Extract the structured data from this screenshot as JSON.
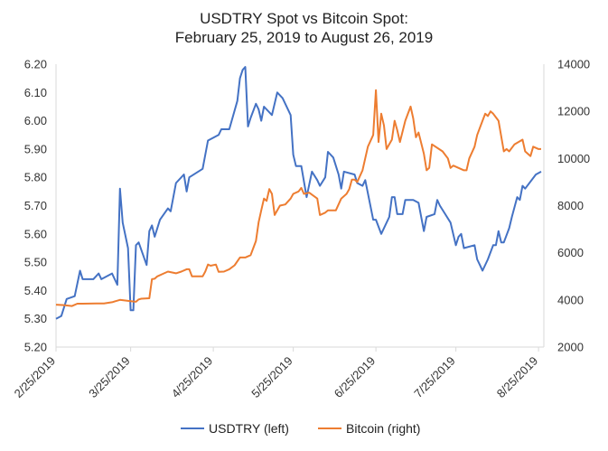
{
  "chart_data": {
    "type": "line",
    "title_line1": "USDTRY Spot vs Bitcoin Spot:",
    "title_line2": "February 25, 2019 to August 26, 2019",
    "x_tick_labels": [
      "2/25/2019",
      "3/25/2019",
      "4/25/2019",
      "5/25/2019",
      "6/25/2019",
      "7/25/2019",
      "8/25/2019"
    ],
    "left_axis": {
      "ticks": [
        "5.20",
        "5.30",
        "5.40",
        "5.50",
        "5.60",
        "5.70",
        "5.80",
        "5.90",
        "6.00",
        "6.10",
        "6.20"
      ],
      "ylim": [
        5.2,
        6.2
      ]
    },
    "right_axis": {
      "ticks": [
        "2000",
        "4000",
        "6000",
        "8000",
        "10000",
        "12000",
        "14000"
      ],
      "ylim": [
        2000,
        14000
      ]
    },
    "legend_position": "bottom",
    "colors": {
      "usdtry": "#4472C4",
      "bitcoin": "#ED7D31",
      "axis": "#D9D9D9"
    },
    "series": [
      {
        "name": "USDTRY (left)",
        "axis": "left",
        "points": [
          [
            "2019-02-25",
            5.3
          ],
          [
            "2019-02-27",
            5.31
          ],
          [
            "2019-03-01",
            5.37
          ],
          [
            "2019-03-04",
            5.38
          ],
          [
            "2019-03-06",
            5.47
          ],
          [
            "2019-03-07",
            5.44
          ],
          [
            "2019-03-11",
            5.44
          ],
          [
            "2019-03-13",
            5.46
          ],
          [
            "2019-03-14",
            5.44
          ],
          [
            "2019-03-18",
            5.46
          ],
          [
            "2019-03-20",
            5.42
          ],
          [
            "2019-03-21",
            5.76
          ],
          [
            "2019-03-22",
            5.64
          ],
          [
            "2019-03-24",
            5.55
          ],
          [
            "2019-03-25",
            5.33
          ],
          [
            "2019-03-26",
            5.33
          ],
          [
            "2019-03-27",
            5.56
          ],
          [
            "2019-03-28",
            5.57
          ],
          [
            "2019-03-31",
            5.49
          ],
          [
            "2019-04-01",
            5.61
          ],
          [
            "2019-04-02",
            5.63
          ],
          [
            "2019-04-03",
            5.59
          ],
          [
            "2019-04-05",
            5.65
          ],
          [
            "2019-04-08",
            5.69
          ],
          [
            "2019-04-09",
            5.68
          ],
          [
            "2019-04-11",
            5.78
          ],
          [
            "2019-04-14",
            5.81
          ],
          [
            "2019-04-15",
            5.75
          ],
          [
            "2019-04-16",
            5.8
          ],
          [
            "2019-04-21",
            5.83
          ],
          [
            "2019-04-23",
            5.93
          ],
          [
            "2019-04-25",
            5.94
          ],
          [
            "2019-04-27",
            5.95
          ],
          [
            "2019-04-28",
            5.97
          ],
          [
            "2019-05-01",
            5.97
          ],
          [
            "2019-05-04",
            6.07
          ],
          [
            "2019-05-05",
            6.15
          ],
          [
            "2019-05-06",
            6.18
          ],
          [
            "2019-05-07",
            6.19
          ],
          [
            "2019-05-08",
            5.98
          ],
          [
            "2019-05-09",
            6.01
          ],
          [
            "2019-05-11",
            6.06
          ],
          [
            "2019-05-12",
            6.04
          ],
          [
            "2019-05-13",
            6.0
          ],
          [
            "2019-05-14",
            6.05
          ],
          [
            "2019-05-17",
            6.02
          ],
          [
            "2019-05-19",
            6.1
          ],
          [
            "2019-05-21",
            6.08
          ],
          [
            "2019-05-24",
            6.02
          ],
          [
            "2019-05-25",
            5.88
          ],
          [
            "2019-05-26",
            5.84
          ],
          [
            "2019-05-28",
            5.84
          ],
          [
            "2019-05-30",
            5.73
          ],
          [
            "2019-06-01",
            5.82
          ],
          [
            "2019-06-03",
            5.79
          ],
          [
            "2019-06-04",
            5.77
          ],
          [
            "2019-06-06",
            5.8
          ],
          [
            "2019-06-07",
            5.89
          ],
          [
            "2019-06-09",
            5.87
          ],
          [
            "2019-06-11",
            5.81
          ],
          [
            "2019-06-12",
            5.76
          ],
          [
            "2019-06-13",
            5.82
          ],
          [
            "2019-06-17",
            5.81
          ],
          [
            "2019-06-18",
            5.78
          ],
          [
            "2019-06-20",
            5.77
          ],
          [
            "2019-06-21",
            5.79
          ],
          [
            "2019-06-24",
            5.65
          ],
          [
            "2019-06-25",
            5.65
          ],
          [
            "2019-06-27",
            5.6
          ],
          [
            "2019-06-30",
            5.66
          ],
          [
            "2019-07-01",
            5.73
          ],
          [
            "2019-07-02",
            5.73
          ],
          [
            "2019-07-03",
            5.67
          ],
          [
            "2019-07-05",
            5.67
          ],
          [
            "2019-07-06",
            5.72
          ],
          [
            "2019-07-09",
            5.72
          ],
          [
            "2019-07-11",
            5.71
          ],
          [
            "2019-07-13",
            5.61
          ],
          [
            "2019-07-14",
            5.66
          ],
          [
            "2019-07-17",
            5.67
          ],
          [
            "2019-07-18",
            5.72
          ],
          [
            "2019-07-19",
            5.7
          ],
          [
            "2019-07-21",
            5.67
          ],
          [
            "2019-07-23",
            5.64
          ],
          [
            "2019-07-25",
            5.56
          ],
          [
            "2019-07-26",
            5.59
          ],
          [
            "2019-07-27",
            5.6
          ],
          [
            "2019-07-28",
            5.55
          ],
          [
            "2019-08-01",
            5.56
          ],
          [
            "2019-08-02",
            5.51
          ],
          [
            "2019-08-03",
            5.49
          ],
          [
            "2019-08-04",
            5.47
          ],
          [
            "2019-08-06",
            5.51
          ],
          [
            "2019-08-08",
            5.56
          ],
          [
            "2019-08-09",
            5.56
          ],
          [
            "2019-08-10",
            5.61
          ],
          [
            "2019-08-11",
            5.57
          ],
          [
            "2019-08-12",
            5.57
          ],
          [
            "2019-08-14",
            5.62
          ],
          [
            "2019-08-15",
            5.66
          ],
          [
            "2019-08-17",
            5.73
          ],
          [
            "2019-08-18",
            5.72
          ],
          [
            "2019-08-19",
            5.77
          ],
          [
            "2019-08-20",
            5.76
          ],
          [
            "2019-08-24",
            5.81
          ],
          [
            "2019-08-26",
            5.82
          ]
        ]
      },
      {
        "name": "Bitcoin (right)",
        "axis": "right",
        "points": [
          [
            "2019-02-25",
            3800
          ],
          [
            "2019-02-28",
            3780
          ],
          [
            "2019-03-03",
            3740
          ],
          [
            "2019-03-05",
            3840
          ],
          [
            "2019-03-07",
            3840
          ],
          [
            "2019-03-12",
            3850
          ],
          [
            "2019-03-15",
            3850
          ],
          [
            "2019-03-18",
            3900
          ],
          [
            "2019-03-21",
            4000
          ],
          [
            "2019-03-24",
            3960
          ],
          [
            "2019-03-27",
            3920
          ],
          [
            "2019-03-28",
            4020
          ],
          [
            "2019-03-29",
            4050
          ],
          [
            "2019-04-01",
            4070
          ],
          [
            "2019-04-02",
            4880
          ],
          [
            "2019-04-03",
            4900
          ],
          [
            "2019-04-04",
            5000
          ],
          [
            "2019-04-06",
            5100
          ],
          [
            "2019-04-08",
            5200
          ],
          [
            "2019-04-11",
            5130
          ],
          [
            "2019-04-13",
            5200
          ],
          [
            "2019-04-15",
            5300
          ],
          [
            "2019-04-16",
            5300
          ],
          [
            "2019-04-17",
            5000
          ],
          [
            "2019-04-21",
            5000
          ],
          [
            "2019-04-22",
            5200
          ],
          [
            "2019-04-23",
            5500
          ],
          [
            "2019-04-24",
            5450
          ],
          [
            "2019-04-26",
            5500
          ],
          [
            "2019-04-27",
            5190
          ],
          [
            "2019-04-29",
            5200
          ],
          [
            "2019-05-01",
            5300
          ],
          [
            "2019-05-03",
            5470
          ],
          [
            "2019-05-05",
            5800
          ],
          [
            "2019-05-07",
            5800
          ],
          [
            "2019-05-09",
            5900
          ],
          [
            "2019-05-10",
            6200
          ],
          [
            "2019-05-11",
            6500
          ],
          [
            "2019-05-12",
            7300
          ],
          [
            "2019-05-13",
            7800
          ],
          [
            "2019-05-14",
            8300
          ],
          [
            "2019-05-15",
            8200
          ],
          [
            "2019-05-16",
            8700
          ],
          [
            "2019-05-17",
            8500
          ],
          [
            "2019-05-18",
            7600
          ],
          [
            "2019-05-20",
            8000
          ],
          [
            "2019-05-22",
            8050
          ],
          [
            "2019-05-24",
            8300
          ],
          [
            "2019-05-25",
            8500
          ],
          [
            "2019-05-27",
            8600
          ],
          [
            "2019-05-28",
            8750
          ],
          [
            "2019-05-29",
            8500
          ],
          [
            "2019-05-31",
            8550
          ],
          [
            "2019-06-03",
            8300
          ],
          [
            "2019-06-04",
            7600
          ],
          [
            "2019-06-06",
            7700
          ],
          [
            "2019-06-07",
            7800
          ],
          [
            "2019-06-10",
            7800
          ],
          [
            "2019-06-12",
            8300
          ],
          [
            "2019-06-14",
            8500
          ],
          [
            "2019-06-15",
            8700
          ],
          [
            "2019-06-16",
            9100
          ],
          [
            "2019-06-17",
            9100
          ],
          [
            "2019-06-18",
            9000
          ],
          [
            "2019-06-20",
            9500
          ],
          [
            "2019-06-22",
            10500
          ],
          [
            "2019-06-24",
            11000
          ],
          [
            "2019-06-25",
            12900
          ],
          [
            "2019-06-26",
            10700
          ],
          [
            "2019-06-27",
            11900
          ],
          [
            "2019-06-28",
            11400
          ],
          [
            "2019-06-29",
            10400
          ],
          [
            "2019-07-01",
            10800
          ],
          [
            "2019-07-02",
            11600
          ],
          [
            "2019-07-03",
            11200
          ],
          [
            "2019-07-04",
            10700
          ],
          [
            "2019-07-06",
            11600
          ],
          [
            "2019-07-08",
            12200
          ],
          [
            "2019-07-09",
            11700
          ],
          [
            "2019-07-10",
            10900
          ],
          [
            "2019-07-11",
            11100
          ],
          [
            "2019-07-13",
            10200
          ],
          [
            "2019-07-14",
            9500
          ],
          [
            "2019-07-15",
            9600
          ],
          [
            "2019-07-16",
            10600
          ],
          [
            "2019-07-20",
            10300
          ],
          [
            "2019-07-22",
            10000
          ],
          [
            "2019-07-23",
            9600
          ],
          [
            "2019-07-24",
            9700
          ],
          [
            "2019-07-26",
            9600
          ],
          [
            "2019-07-28",
            9500
          ],
          [
            "2019-07-29",
            9500
          ],
          [
            "2019-07-30",
            10000
          ],
          [
            "2019-08-01",
            10500
          ],
          [
            "2019-08-02",
            11000
          ],
          [
            "2019-08-04",
            11600
          ],
          [
            "2019-08-05",
            11900
          ],
          [
            "2019-08-06",
            11800
          ],
          [
            "2019-08-07",
            12000
          ],
          [
            "2019-08-08",
            11900
          ],
          [
            "2019-08-10",
            11600
          ],
          [
            "2019-08-12",
            10300
          ],
          [
            "2019-08-13",
            10400
          ],
          [
            "2019-08-14",
            10300
          ],
          [
            "2019-08-16",
            10600
          ],
          [
            "2019-08-19",
            10800
          ],
          [
            "2019-08-20",
            10300
          ],
          [
            "2019-08-22",
            10100
          ],
          [
            "2019-08-23",
            10500
          ],
          [
            "2019-08-25",
            10400
          ],
          [
            "2019-08-26",
            10400
          ]
        ]
      }
    ]
  }
}
